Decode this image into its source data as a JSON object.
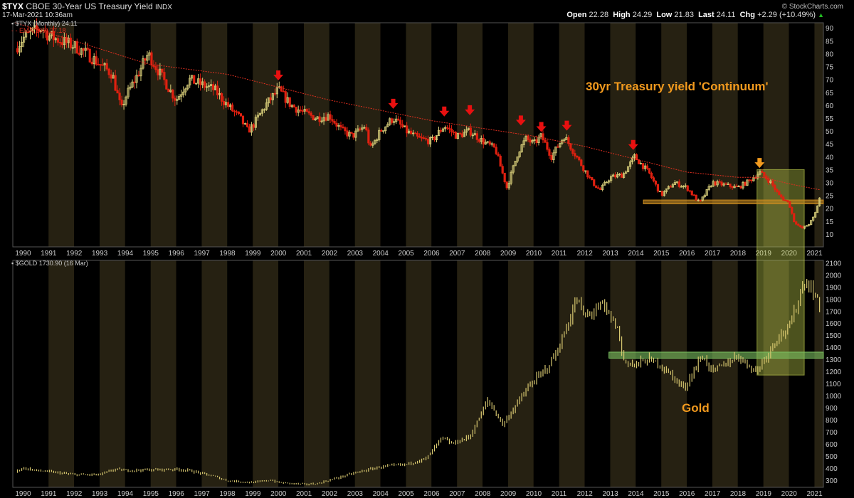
{
  "header": {
    "symbol": "$TYX",
    "description": "CBOE 30-Year US Treasury Yield",
    "exchange": "INDX",
    "datetime": "17-Mar-2021 10:36am",
    "watermark": "© StockCharts.com",
    "open_label": "Open",
    "open": "22.28",
    "high_label": "High",
    "high": "24.29",
    "low_label": "Low",
    "low": "21.83",
    "last_label": "Last",
    "last": "24.11",
    "chg_label": "Chg",
    "chg": "+2.29 (+10.49%)",
    "chg_arrow": "▲"
  },
  "colors": {
    "background": "#000000",
    "band_even": "#000000",
    "band_odd": "#262112",
    "up_candle": "#d9cf7a",
    "down_candle": "#e02010",
    "ema": "#e03020",
    "gold_line": "#d8c870",
    "annotation_orange": "#f29a1e",
    "marker_red": "#e81010",
    "support_orange": "#c88a20",
    "support_green": "#7cc060",
    "highlight_box": "#c8d850",
    "grid_text": "#cccccc",
    "chg_up": "#22bb22"
  },
  "chart_data": [
    {
      "type": "line",
      "name": "tyx_panel",
      "legend": [
        "$TYX (Monthly) 24.11",
        "EMA(100) 27.18"
      ],
      "title": "30yr Treasury yield 'Continuum'",
      "xlabel": "",
      "ylabel": "",
      "x_ticks": [
        "1990",
        "1991",
        "1992",
        "1993",
        "1994",
        "1995",
        "1996",
        "1997",
        "1998",
        "1999",
        "2000",
        "2001",
        "2002",
        "2003",
        "2004",
        "2005",
        "2006",
        "2007",
        "2008",
        "2009",
        "2010",
        "2011",
        "2012",
        "2013",
        "2014",
        "2015",
        "2016",
        "2017",
        "2018",
        "2019",
        "2020",
        "2021"
      ],
      "y_ticks": [
        10,
        15,
        20,
        25,
        30,
        35,
        40,
        45,
        50,
        55,
        60,
        65,
        70,
        75,
        80,
        85,
        90
      ],
      "ylim": [
        5,
        92
      ],
      "xlim": [
        1989.6,
        2021.35
      ],
      "series": [
        {
          "name": "$TYX (Monthly)",
          "x": [
            1989.7,
            1990.0,
            1990.3,
            1990.75,
            1991.0,
            1991.5,
            1992.0,
            1992.5,
            1993.0,
            1993.5,
            1993.85,
            1994.0,
            1994.5,
            1994.9,
            1995.5,
            1996.0,
            1996.5,
            1997.0,
            1997.5,
            1998.0,
            1998.5,
            1998.8,
            1999.0,
            1999.5,
            2000.0,
            2000.5,
            2001.0,
            2001.5,
            2002.0,
            2002.5,
            2002.9,
            2003.4,
            2003.6,
            2004.0,
            2004.5,
            2005.0,
            2005.5,
            2006.0,
            2006.5,
            2007.0,
            2007.5,
            2008.0,
            2008.5,
            2008.95,
            2009.4,
            2009.7,
            2010.0,
            2010.3,
            2010.7,
            2011.0,
            2011.2,
            2011.8,
            2012.3,
            2012.6,
            2013.0,
            2013.5,
            2013.95,
            2014.5,
            2015.0,
            2015.5,
            2016.0,
            2016.5,
            2017.0,
            2017.5,
            2018.0,
            2018.5,
            2018.85,
            2019.3,
            2019.6,
            2020.0,
            2020.2,
            2020.5,
            2020.8,
            2021.0,
            2021.2
          ],
          "values": [
            82,
            86,
            88,
            90,
            87,
            85,
            83,
            80,
            76,
            72,
            58,
            63,
            72,
            80,
            70,
            62,
            70,
            68,
            66,
            60,
            55,
            50,
            52,
            60,
            66,
            60,
            57,
            55,
            56,
            50,
            48,
            52,
            43,
            50,
            55,
            50,
            47,
            46,
            52,
            48,
            50,
            46,
            43,
            28,
            42,
            47,
            45,
            48,
            40,
            45,
            48,
            38,
            30,
            27,
            32,
            33,
            40,
            34,
            25,
            30,
            28,
            22,
            30,
            29,
            28,
            31,
            34,
            30,
            25,
            22,
            15,
            12,
            14,
            17,
            24
          ]
        },
        {
          "name": "EMA(100)",
          "x": [
            1989.7,
            1992.0,
            1994.9,
            1998.0,
            2000.0,
            2002.0,
            2004.0,
            2006.0,
            2008.0,
            2010.0,
            2012.0,
            2014.0,
            2016.0,
            2018.0,
            2019.0,
            2020.0,
            2021.2
          ],
          "values": [
            92,
            85,
            76,
            72,
            67,
            62,
            58,
            54,
            51,
            48,
            44,
            39,
            34,
            32,
            32,
            29.5,
            27.18
          ]
        }
      ],
      "annotations": [
        "30yr Treasury yield 'Continuum'"
      ],
      "marker_arrows": [
        {
          "x": 2000.0,
          "y": 71,
          "color": "red"
        },
        {
          "x": 2004.5,
          "y": 60,
          "color": "red"
        },
        {
          "x": 2006.5,
          "y": 57,
          "color": "red"
        },
        {
          "x": 2007.5,
          "y": 57.5,
          "color": "red"
        },
        {
          "x": 2009.5,
          "y": 53.5,
          "color": "red"
        },
        {
          "x": 2010.3,
          "y": 51,
          "color": "red"
        },
        {
          "x": 2011.3,
          "y": 51.5,
          "color": "red"
        },
        {
          "x": 2013.9,
          "y": 44,
          "color": "red"
        },
        {
          "x": 2018.85,
          "y": 37,
          "color": "orange"
        }
      ],
      "support_band": {
        "x_start": 2014.3,
        "x_end": 2021.35,
        "y_low": 21.7,
        "y_high": 23.2
      }
    },
    {
      "type": "line",
      "name": "gold_panel",
      "legend": [
        "$GOLD 1730.90 (16 Mar)"
      ],
      "title": "Gold",
      "xlabel": "",
      "ylabel": "",
      "x_ticks": [
        "1990",
        "1991",
        "1992",
        "1993",
        "1994",
        "1995",
        "1996",
        "1997",
        "1998",
        "1999",
        "2000",
        "2001",
        "2002",
        "2003",
        "2004",
        "2005",
        "2006",
        "2007",
        "2008",
        "2009",
        "2010",
        "2011",
        "2012",
        "2013",
        "2014",
        "2015",
        "2016",
        "2017",
        "2018",
        "2019",
        "2020",
        "2021"
      ],
      "y_ticks": [
        300,
        400,
        500,
        600,
        700,
        800,
        900,
        1000,
        1100,
        1200,
        1300,
        1400,
        1500,
        1600,
        1700,
        1800,
        1900,
        2000,
        2100
      ],
      "ylim": [
        240,
        2120
      ],
      "xlim": [
        1989.6,
        2021.35
      ],
      "series": [
        {
          "name": "$GOLD",
          "x": [
            1989.7,
            1990.0,
            1990.5,
            1991.0,
            1992.0,
            1993.0,
            1993.6,
            1994.0,
            1995.0,
            1996.0,
            1996.5,
            1997.5,
            1998.0,
            1999.0,
            1999.7,
            2000.0,
            2001.0,
            2001.5,
            2002.0,
            2003.0,
            2004.0,
            2005.0,
            2005.8,
            2006.4,
            2006.8,
            2007.5,
            2007.9,
            2008.2,
            2008.8,
            2009.3,
            2009.9,
            2010.5,
            2011.0,
            2011.7,
            2012.0,
            2012.7,
            2013.3,
            2013.5,
            2013.9,
            2014.5,
            2015.0,
            2015.9,
            2016.6,
            2017.0,
            2017.5,
            2018.0,
            2018.7,
            2019.0,
            2019.6,
            2020.0,
            2020.6,
            2021.0,
            2021.2
          ],
          "values": [
            370,
            400,
            380,
            370,
            345,
            345,
            390,
            380,
            385,
            390,
            380,
            330,
            295,
            280,
            300,
            280,
            265,
            270,
            300,
            360,
            410,
            430,
            480,
            650,
            600,
            660,
            830,
            960,
            760,
            920,
            1100,
            1220,
            1400,
            1800,
            1650,
            1750,
            1550,
            1300,
            1250,
            1300,
            1250,
            1060,
            1330,
            1200,
            1260,
            1330,
            1200,
            1290,
            1500,
            1550,
            1950,
            1850,
            1730.9
          ]
        }
      ],
      "annotations": [
        "Gold"
      ],
      "support_band": {
        "x_start": 2012.95,
        "x_end": 2021.35,
        "y_low": 1310,
        "y_high": 1360
      }
    }
  ],
  "highlight_box": {
    "x_start": 2018.75,
    "x_end": 2020.6,
    "panel_top_value": 35,
    "panel_bottom_value": 1170
  }
}
